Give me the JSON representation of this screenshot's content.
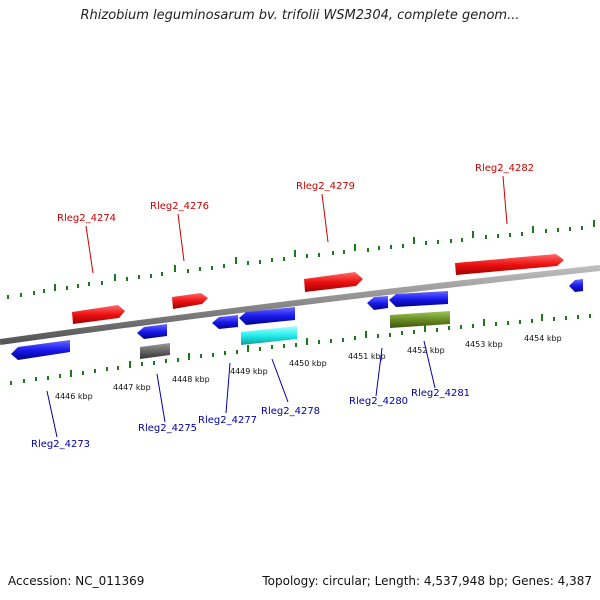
{
  "title": "Rhizobium leguminosarum bv. trifolii WSM2304, complete genom...",
  "footer": {
    "accession": "Accession: NC_011369",
    "summary": "Topology: circular; Length: 4,537,948 bp; Genes: 4,387"
  },
  "colors": {
    "forward_gene": "#ee1111",
    "reverse_gene": "#1a1aee",
    "cyan_gene": "#22eeee",
    "gray_gene": "#666666",
    "olive_gene": "#6b8e23",
    "backbone": "#888888",
    "tick_green": "#1a7a1a",
    "forward_label": "#cc0000",
    "reverse_label": "#0000aa"
  },
  "scale_labels": [
    "4446 kbp",
    "4447 kbp",
    "4448 kbp",
    "4449 kbp",
    "4450 kbp",
    "4451 kbp",
    "4452 kbp",
    "4453 kbp",
    "4454 kbp"
  ],
  "gene_labels_forward": [
    "Rleg2_4274",
    "Rleg2_4276",
    "Rleg2_4279",
    "Rleg2_4282"
  ],
  "gene_labels_reverse": [
    "Rleg2_4273",
    "Rleg2_4275",
    "Rleg2_4277",
    "Rleg2_4278",
    "Rleg2_4280",
    "Rleg2_4281"
  ]
}
